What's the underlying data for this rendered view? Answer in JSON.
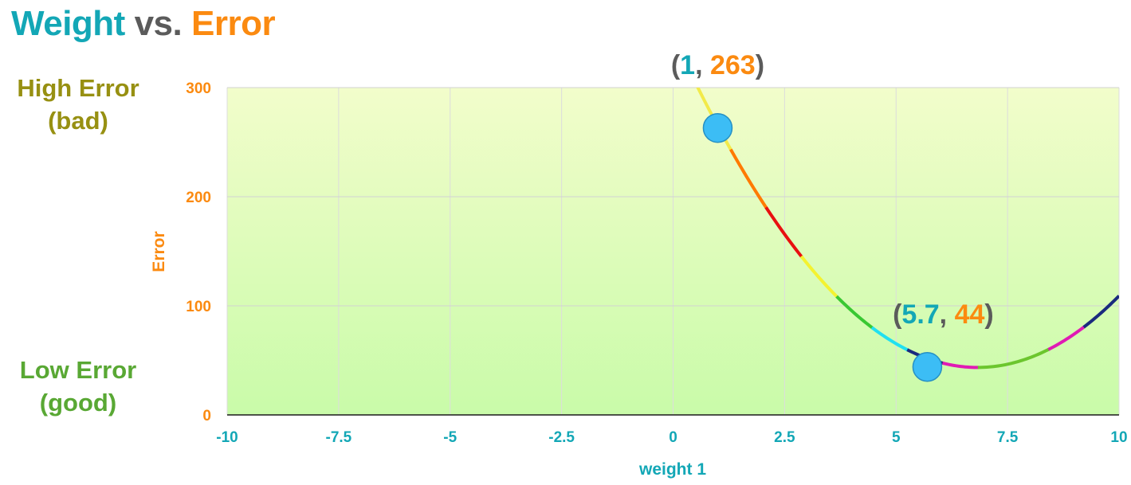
{
  "title": {
    "part1": "Weight",
    "part2": " vs. ",
    "part3": "Error"
  },
  "side_labels": {
    "high_line1": "High Error",
    "high_line2": "(bad)",
    "low_line1": "Low Error",
    "low_line2": "(good)"
  },
  "colors": {
    "weight": "#13a7b6",
    "vs": "#5b5b5b",
    "error": "#fb8a10",
    "point_fill": "#3cbdf5",
    "point_stroke": "#2690c4",
    "high_label": "#979012",
    "low_label": "#59a834",
    "paren": "#5b5b5b",
    "plot_top": "#f2fdcb",
    "plot_bottom": "#c9fba9"
  },
  "chart_data": {
    "type": "line",
    "title": "",
    "xlabel": "weight 1",
    "ylabel": "Error",
    "xlim": [
      -10,
      10
    ],
    "ylim": [
      0,
      300
    ],
    "x_ticks": [
      "-10",
      "-7.5",
      "-5",
      "-2.5",
      "0",
      "2.5",
      "5",
      "7.5",
      "10"
    ],
    "y_ticks": [
      "0",
      "100",
      "200",
      "300"
    ],
    "grid": true,
    "legend": "none",
    "curve": {
      "shape": "quadratic",
      "x": [
        0.5,
        1,
        2,
        3,
        4,
        5,
        5.7,
        6.8,
        8,
        9,
        10
      ],
      "y": [
        300,
        263,
        200,
        145,
        100,
        65,
        44,
        42,
        50,
        75,
        112
      ],
      "segment_colors": [
        "#f2ea4a",
        "#ff7a00",
        "#e81010",
        "#f4f230",
        "#39c832",
        "#21e0f0",
        "#1a2a7e",
        "#e01ab4",
        "#6cc62e",
        "#6cc62e",
        "#e01ab4",
        "#1a2a7e"
      ]
    },
    "points": [
      {
        "x": 1,
        "y": 263,
        "label_open": "(",
        "label_x": "1",
        "label_sep": ", ",
        "label_y": "263",
        "label_close": ")"
      },
      {
        "x": 5.7,
        "y": 44,
        "label_open": "(",
        "label_x": "5.7",
        "label_sep": ", ",
        "label_y": "44",
        "label_close": ")"
      }
    ]
  }
}
